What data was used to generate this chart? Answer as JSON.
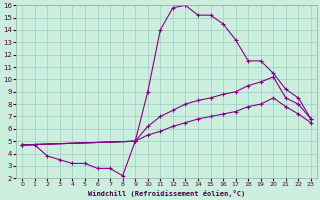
{
  "xlabel": "Windchill (Refroidissement éolien,°C)",
  "bg_color": "#cceedd",
  "line_color": "#880088",
  "grid_color": "#99cccc",
  "xlim": [
    -0.5,
    23.5
  ],
  "ylim": [
    2,
    16
  ],
  "xticks": [
    0,
    1,
    2,
    3,
    4,
    5,
    6,
    7,
    8,
    9,
    10,
    11,
    12,
    13,
    14,
    15,
    16,
    17,
    18,
    19,
    20,
    21,
    22,
    23
  ],
  "yticks": [
    2,
    3,
    4,
    5,
    6,
    7,
    8,
    9,
    10,
    11,
    12,
    13,
    14,
    15,
    16
  ],
  "curve1_x": [
    0,
    1,
    2,
    3,
    4,
    5,
    6,
    7,
    8,
    9
  ],
  "curve1_y": [
    4.7,
    4.7,
    3.8,
    3.5,
    3.2,
    3.2,
    2.8,
    2.8,
    2.2,
    5.0
  ],
  "curve2_x": [
    0,
    9,
    10,
    11,
    12,
    13,
    14,
    15,
    16,
    17,
    18,
    19,
    20,
    21,
    22,
    23
  ],
  "curve2_y": [
    4.7,
    5.0,
    9.0,
    14.0,
    15.8,
    16.0,
    15.2,
    15.2,
    14.5,
    13.2,
    11.5,
    11.5,
    10.5,
    9.2,
    8.5,
    6.8
  ],
  "curve3_x": [
    0,
    9,
    10,
    11,
    12,
    13,
    14,
    15,
    16,
    17,
    18,
    19,
    20,
    21,
    22,
    23
  ],
  "curve3_y": [
    4.7,
    5.0,
    6.2,
    7.0,
    7.5,
    8.0,
    8.3,
    8.5,
    8.8,
    9.0,
    9.5,
    9.8,
    10.2,
    8.5,
    8.0,
    6.8
  ],
  "curve4_x": [
    0,
    9,
    10,
    11,
    12,
    13,
    14,
    15,
    16,
    17,
    18,
    19,
    20,
    21,
    22,
    23
  ],
  "curve4_y": [
    4.7,
    5.0,
    5.5,
    5.8,
    6.2,
    6.5,
    6.8,
    7.0,
    7.2,
    7.4,
    7.8,
    8.0,
    8.5,
    7.8,
    7.2,
    6.5
  ]
}
